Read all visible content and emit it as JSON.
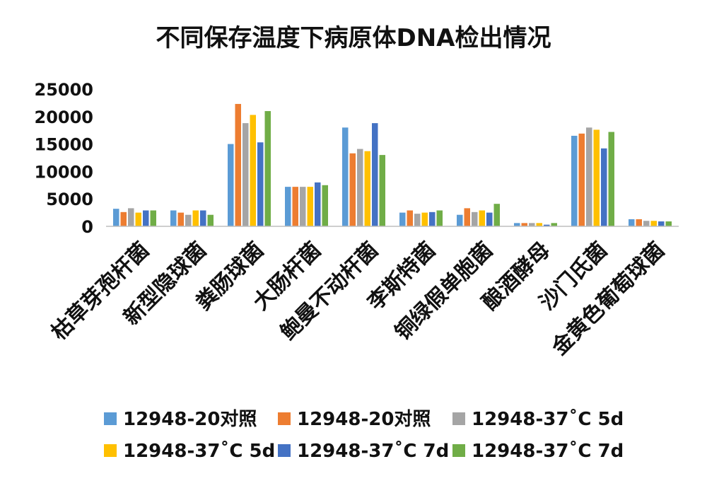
{
  "chart_data": {
    "type": "bar",
    "title": "不同保存温度下病原体DNA检出情况",
    "categories": [
      "枯草芽孢杆菌",
      "新型隐球菌",
      "粪肠球菌",
      "大肠杆菌",
      "鲍曼不动杆菌",
      "李斯特菌",
      "铜绿假单胞菌",
      "酿酒酵母",
      "沙门氏菌",
      "金黄色葡萄球菌"
    ],
    "ylim": [
      0,
      25000
    ],
    "yticks": [
      "0",
      "5000",
      "10000",
      "15000",
      "20000",
      "25000"
    ],
    "grid": false,
    "legend_position": "bottom",
    "series": [
      {
        "name": "12948-20对照",
        "color": "#5B9BD5",
        "values": [
          3200,
          2900,
          15000,
          7200,
          18000,
          2500,
          2100,
          600,
          16500,
          1300
        ]
      },
      {
        "name": "12948-20对照",
        "color": "#ED7D31",
        "values": [
          2600,
          2500,
          22300,
          7200,
          13300,
          2900,
          3300,
          600,
          16900,
          1300
        ]
      },
      {
        "name": "12948-37˚C 5d",
        "color": "#A5A5A5",
        "values": [
          3300,
          2100,
          18800,
          7200,
          14100,
          2300,
          2600,
          600,
          18000,
          1000
        ]
      },
      {
        "name": "12948-37˚C 5d",
        "color": "#FFC000",
        "values": [
          2500,
          2900,
          20300,
          7200,
          13700,
          2500,
          2900,
          600,
          17600,
          1000
        ]
      },
      {
        "name": "12948-37˚C 7d",
        "color": "#4472C4",
        "values": [
          2900,
          2900,
          15300,
          8000,
          18800,
          2600,
          2500,
          300,
          14200,
          900
        ]
      },
      {
        "name": "12948-37˚C 7d",
        "color": "#70AD47",
        "values": [
          2900,
          2100,
          21000,
          7500,
          13000,
          2900,
          4100,
          600,
          17200,
          900
        ]
      }
    ]
  }
}
